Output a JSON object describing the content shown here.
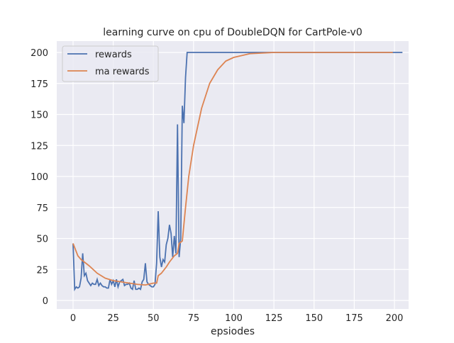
{
  "chart_data": {
    "type": "line",
    "title": "learning curve on cpu of DoubleDQN for CartPole-v0",
    "xlabel": "epsiodes",
    "ylabel": "",
    "xlim": [
      -9.95,
      208.95
    ],
    "ylim": [
      -6,
      210
    ],
    "xticks": [
      0,
      25,
      50,
      75,
      100,
      125,
      150,
      175,
      200
    ],
    "yticks": [
      0,
      25,
      50,
      75,
      100,
      125,
      150,
      175,
      200
    ],
    "grid": true,
    "legend": "top-left",
    "background": "#eaeaf2",
    "series": [
      {
        "name": "rewards",
        "color": "#4c72b0",
        "x_start": 0,
        "values": [
          46,
          9,
          11,
          10,
          11,
          18,
          38,
          20,
          22,
          16,
          14,
          12,
          14,
          13,
          13,
          17,
          12,
          14,
          12,
          11,
          11,
          10,
          10,
          17,
          13,
          16,
          11,
          17,
          11,
          15,
          16,
          17,
          12,
          13,
          13,
          14,
          10,
          9,
          16,
          9,
          9,
          10,
          9,
          15,
          17,
          30,
          15,
          13,
          12,
          11,
          11,
          13,
          30,
          72,
          35,
          27,
          33,
          31,
          45,
          50,
          61,
          54,
          35,
          52,
          38,
          142,
          35,
          50,
          157,
          143,
          180,
          200,
          200,
          200,
          200,
          200,
          200,
          200,
          200,
          200,
          200,
          200,
          200,
          200,
          200,
          200,
          200,
          200,
          200,
          200,
          200,
          200,
          200,
          200,
          200,
          200,
          200,
          200,
          200,
          200,
          200,
          200,
          200,
          200,
          200,
          200,
          200,
          200,
          200,
          200,
          200,
          200,
          200,
          200,
          200,
          200,
          200,
          200,
          200,
          200,
          200,
          200,
          200,
          200,
          200,
          200,
          200,
          200,
          200,
          200,
          200,
          200,
          200,
          200,
          200,
          200,
          200,
          200,
          200,
          200,
          200,
          200,
          200,
          200,
          200,
          200,
          200,
          200,
          200,
          200,
          200,
          200,
          200,
          200,
          200,
          200,
          200,
          200,
          200,
          200,
          200,
          200,
          200,
          200,
          200,
          200,
          200,
          200,
          200,
          200,
          200,
          200,
          200,
          200,
          200,
          200,
          200,
          200,
          200,
          200,
          200,
          200,
          200,
          200,
          200,
          200,
          200,
          200,
          200,
          200,
          200,
          200,
          200,
          200,
          200,
          200,
          200,
          200,
          200,
          200,
          200,
          200,
          200,
          200,
          200,
          200
        ]
      },
      {
        "name": "ma rewards",
        "color": "#dd8452",
        "x": [
          0,
          3,
          5,
          7,
          10,
          15,
          20,
          25,
          30,
          35,
          40,
          45,
          50,
          52,
          53,
          55,
          58,
          60,
          63,
          64,
          65,
          66,
          68,
          70,
          72,
          75,
          80,
          85,
          90,
          95,
          100,
          110,
          125,
          199
        ],
        "y": [
          46,
          36,
          33,
          31,
          28,
          22,
          18,
          16,
          15,
          14,
          13,
          12.5,
          14,
          14,
          20,
          22,
          27,
          31,
          36,
          37,
          38,
          46,
          48,
          75,
          100,
          125,
          155,
          175,
          186,
          193,
          196,
          199,
          200,
          200
        ]
      }
    ]
  }
}
